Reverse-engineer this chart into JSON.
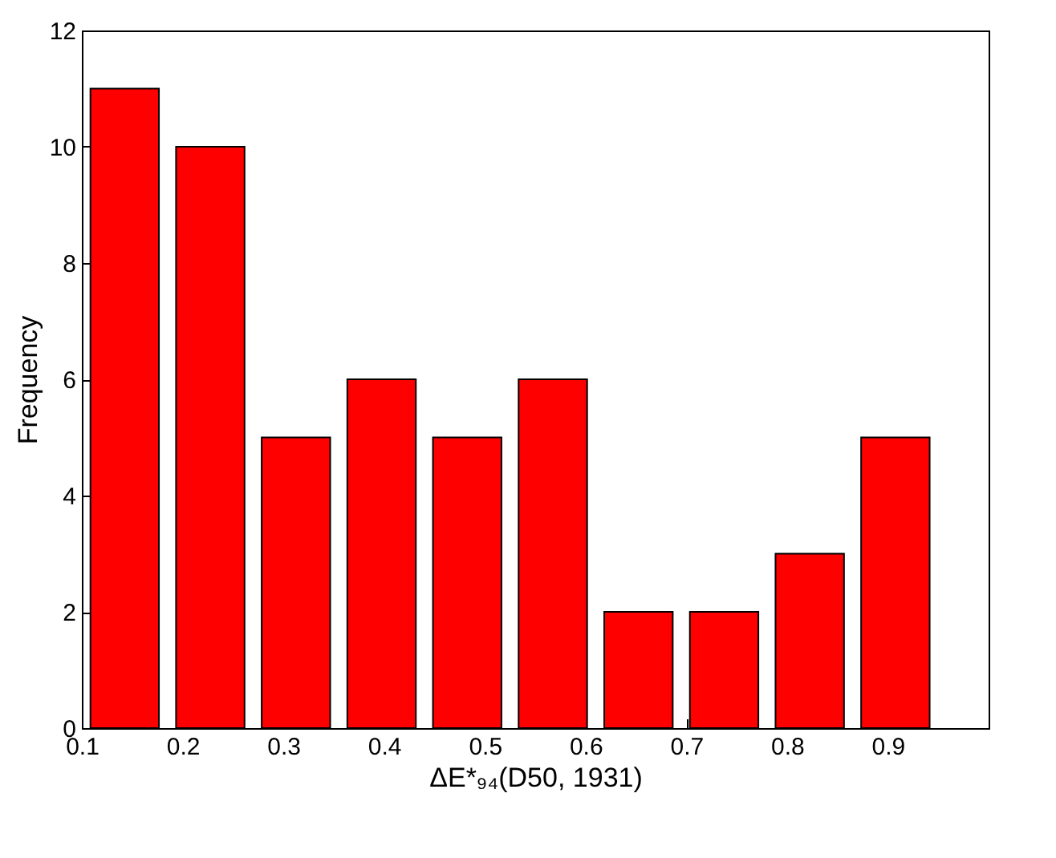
{
  "chart_data": {
    "type": "histogram",
    "xlabel": "ΔE*₉₄(D50, 1931)",
    "ylabel": "Frequency",
    "bins": [
      0.1,
      0.185,
      0.27,
      0.355,
      0.44,
      0.525,
      0.61,
      0.695,
      0.78,
      0.865,
      0.95
    ],
    "values": [
      11,
      10,
      5,
      6,
      5,
      6,
      2,
      2,
      3,
      5
    ],
    "color": "#ff0000",
    "xlim": [
      0.1,
      1.0
    ],
    "xticks": [
      0.1,
      0.2,
      0.3,
      0.4,
      0.5,
      0.6,
      0.7,
      0.8,
      0.9
    ],
    "ylim": [
      0,
      12
    ],
    "yticks": [
      0,
      2,
      4,
      6,
      8,
      10,
      12
    ],
    "grid": false
  }
}
